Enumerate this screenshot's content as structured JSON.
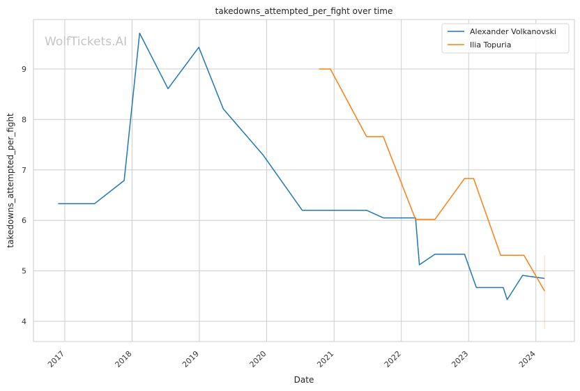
{
  "chart_data": {
    "type": "line",
    "title": "takedowns_attempted_per_fight over time",
    "xlabel": "Date",
    "ylabel": "takedowns_attempted_per_fight",
    "watermark": "WolfTickets.AI",
    "xlim": [
      "2016-07-15",
      "2024-07-28"
    ],
    "ylim": [
      3.6,
      9.98
    ],
    "x_ticks": [
      "2017",
      "2018",
      "2019",
      "2020",
      "2021",
      "2022",
      "2023",
      "2024"
    ],
    "y_ticks": [
      4,
      5,
      6,
      7,
      8,
      9
    ],
    "grid": true,
    "legend_position": "top-right",
    "series": [
      {
        "name": "Alexander Volkanovski",
        "color": "#1f77b4",
        "points": [
          [
            "2016-11-26",
            6.33
          ],
          [
            "2017-06-11",
            6.33
          ],
          [
            "2017-11-19",
            6.79
          ],
          [
            "2018-02-11",
            9.71
          ],
          [
            "2018-07-15",
            8.61
          ],
          [
            "2018-12-29",
            9.43
          ],
          [
            "2019-05-11",
            8.21
          ],
          [
            "2019-12-14",
            7.29
          ],
          [
            "2020-07-12",
            6.2
          ],
          [
            "2021-06-26",
            6.2
          ],
          [
            "2021-09-25",
            6.05
          ],
          [
            "2022-03-19",
            6.05
          ],
          [
            "2022-04-09",
            5.12
          ],
          [
            "2022-07-02",
            5.33
          ],
          [
            "2022-12-10",
            5.33
          ],
          [
            "2023-02-12",
            4.67
          ],
          [
            "2023-07-08",
            4.67
          ],
          [
            "2023-07-29",
            4.43
          ],
          [
            "2023-10-21",
            4.91
          ],
          [
            "2024-02-17",
            4.85
          ]
        ]
      },
      {
        "name": "Ilia Topuria",
        "color": "#ff7f0e",
        "points": [
          [
            "2020-10-11",
            9.0
          ],
          [
            "2020-11-21",
            9.0
          ],
          [
            "2020-12-12",
            9.0
          ],
          [
            "2021-06-26",
            7.66
          ],
          [
            "2021-09-25",
            7.66
          ],
          [
            "2022-03-19",
            6.02
          ],
          [
            "2022-07-02",
            6.02
          ],
          [
            "2022-12-10",
            6.83
          ],
          [
            "2023-01-28",
            6.83
          ],
          [
            "2023-06-24",
            5.31
          ],
          [
            "2023-10-28",
            5.31
          ],
          [
            "2024-02-17",
            4.6
          ]
        ]
      }
    ]
  }
}
